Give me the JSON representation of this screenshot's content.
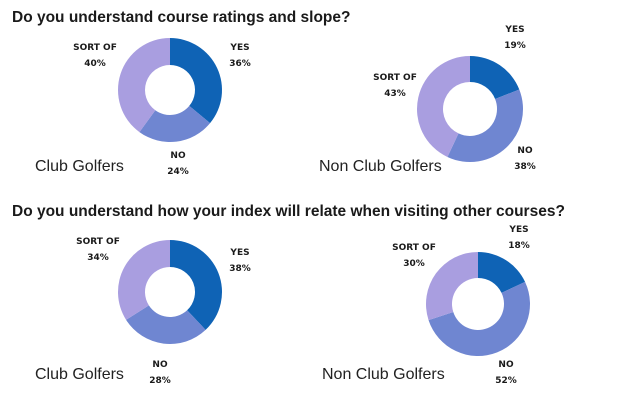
{
  "colors": {
    "yes": "#0f63b5",
    "no": "#6f86d1",
    "sort_of": "#a99ee0"
  },
  "chart_data": [
    {
      "type": "pie",
      "question": "Do you understand course ratings and slope?",
      "group": "Club Golfers",
      "slices": [
        {
          "label": "YES",
          "value": 36,
          "pct": "36%",
          "color": "#0f63b5"
        },
        {
          "label": "NO",
          "value": 24,
          "pct": "24%",
          "color": "#6f86d1"
        },
        {
          "label": "SORT OF",
          "value": 40,
          "pct": "40%",
          "color": "#a99ee0"
        }
      ]
    },
    {
      "type": "pie",
      "question": "Do you understand course ratings and slope?",
      "group": "Non Club Golfers",
      "slices": [
        {
          "label": "YES",
          "value": 19,
          "pct": "19%",
          "color": "#0f63b5"
        },
        {
          "label": "NO",
          "value": 38,
          "pct": "38%",
          "color": "#6f86d1"
        },
        {
          "label": "SORT OF",
          "value": 43,
          "pct": "43%",
          "color": "#a99ee0"
        }
      ]
    },
    {
      "type": "pie",
      "question": "Do you understand how your index will relate when visiting other courses?",
      "group": "Club Golfers",
      "slices": [
        {
          "label": "YES",
          "value": 38,
          "pct": "38%",
          "color": "#0f63b5"
        },
        {
          "label": "NO",
          "value": 28,
          "pct": "28%",
          "color": "#6f86d1"
        },
        {
          "label": "SORT OF",
          "value": 34,
          "pct": "34%",
          "color": "#a99ee0"
        }
      ]
    },
    {
      "type": "pie",
      "question": "Do you understand how your index will relate when visiting other courses?",
      "group": "Non Club Golfers",
      "slices": [
        {
          "label": "YES",
          "value": 18,
          "pct": "18%",
          "color": "#0f63b5"
        },
        {
          "label": "NO",
          "value": 52,
          "pct": "52%",
          "color": "#6f86d1"
        },
        {
          "label": "SORT OF",
          "value": 30,
          "pct": "30%",
          "color": "#a99ee0"
        }
      ]
    }
  ]
}
